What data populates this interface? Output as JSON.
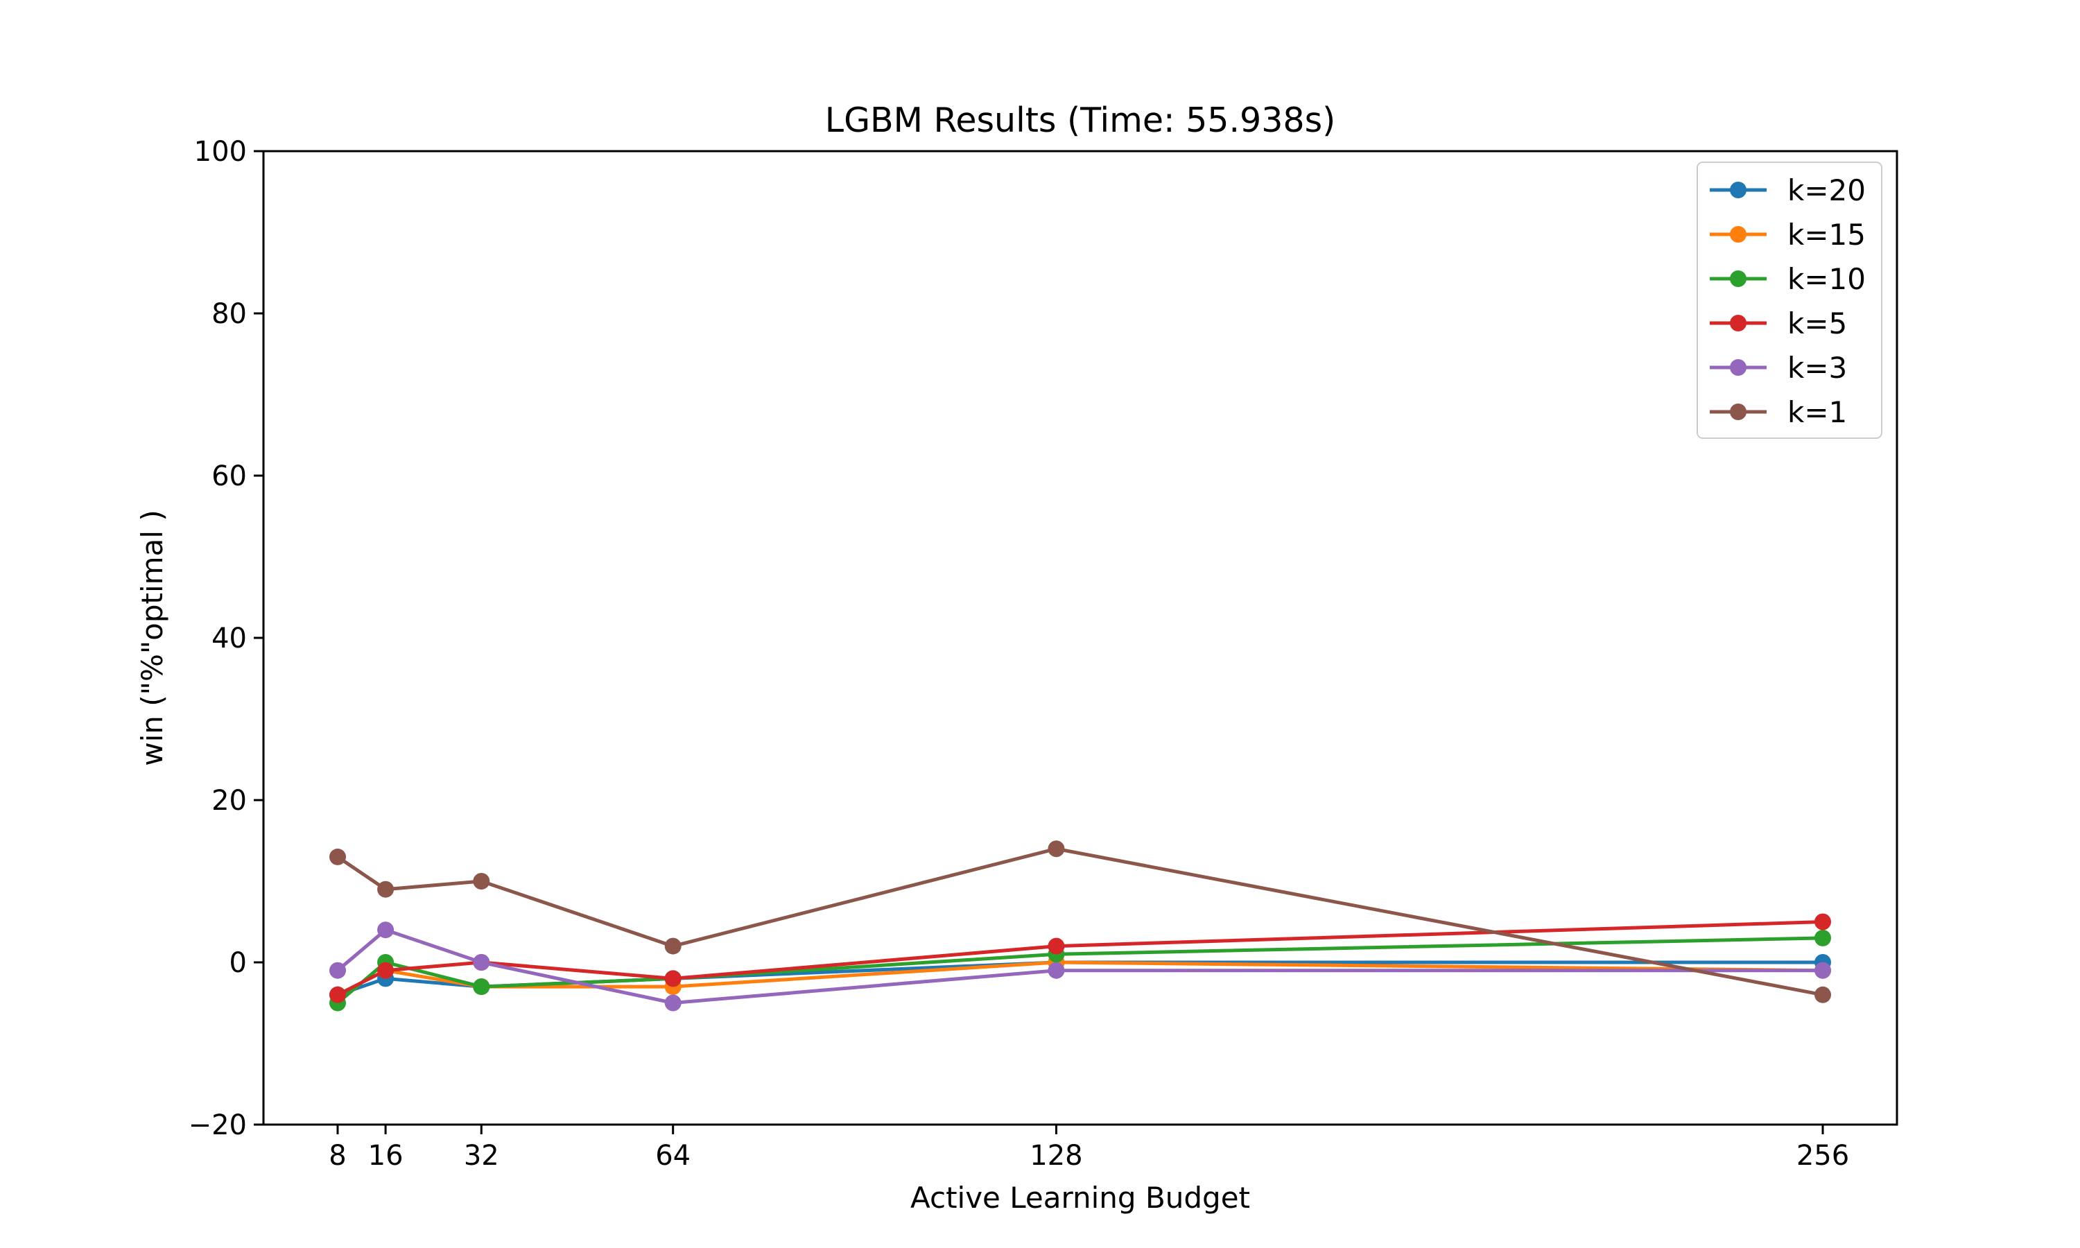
{
  "chart_data": {
    "type": "line",
    "title": "LGBM Results (Time: 55.938s)",
    "xlabel": "Active Learning Budget",
    "ylabel": "win (\"%\"optimal )",
    "x": [
      8,
      16,
      32,
      64,
      128,
      256
    ],
    "xticks": [
      "8",
      "16",
      "32",
      "64",
      "128",
      "256"
    ],
    "ylim": [
      -20,
      100
    ],
    "yticks": [
      "−20",
      "0",
      "20",
      "40",
      "60",
      "80",
      "100"
    ],
    "grid": false,
    "legend_position": "top-right",
    "series": [
      {
        "name": "k=20",
        "color": "#1f77b4",
        "values": [
          -4,
          -2,
          -3,
          -2,
          0,
          0
        ]
      },
      {
        "name": "k=15",
        "color": "#ff7f0e",
        "values": [
          -4,
          -1,
          -3,
          -3,
          0,
          -1
        ]
      },
      {
        "name": "k=10",
        "color": "#2ca02c",
        "values": [
          -5,
          0,
          -3,
          -2,
          1,
          3
        ]
      },
      {
        "name": "k=5",
        "color": "#d62728",
        "values": [
          -4,
          -1,
          0,
          -2,
          2,
          5
        ]
      },
      {
        "name": "k=3",
        "color": "#9467bd",
        "values": [
          -1,
          4,
          0,
          -5,
          -1,
          -1
        ]
      },
      {
        "name": "k=1",
        "color": "#8c564b",
        "values": [
          13,
          9,
          10,
          2,
          14,
          -4
        ]
      }
    ]
  }
}
